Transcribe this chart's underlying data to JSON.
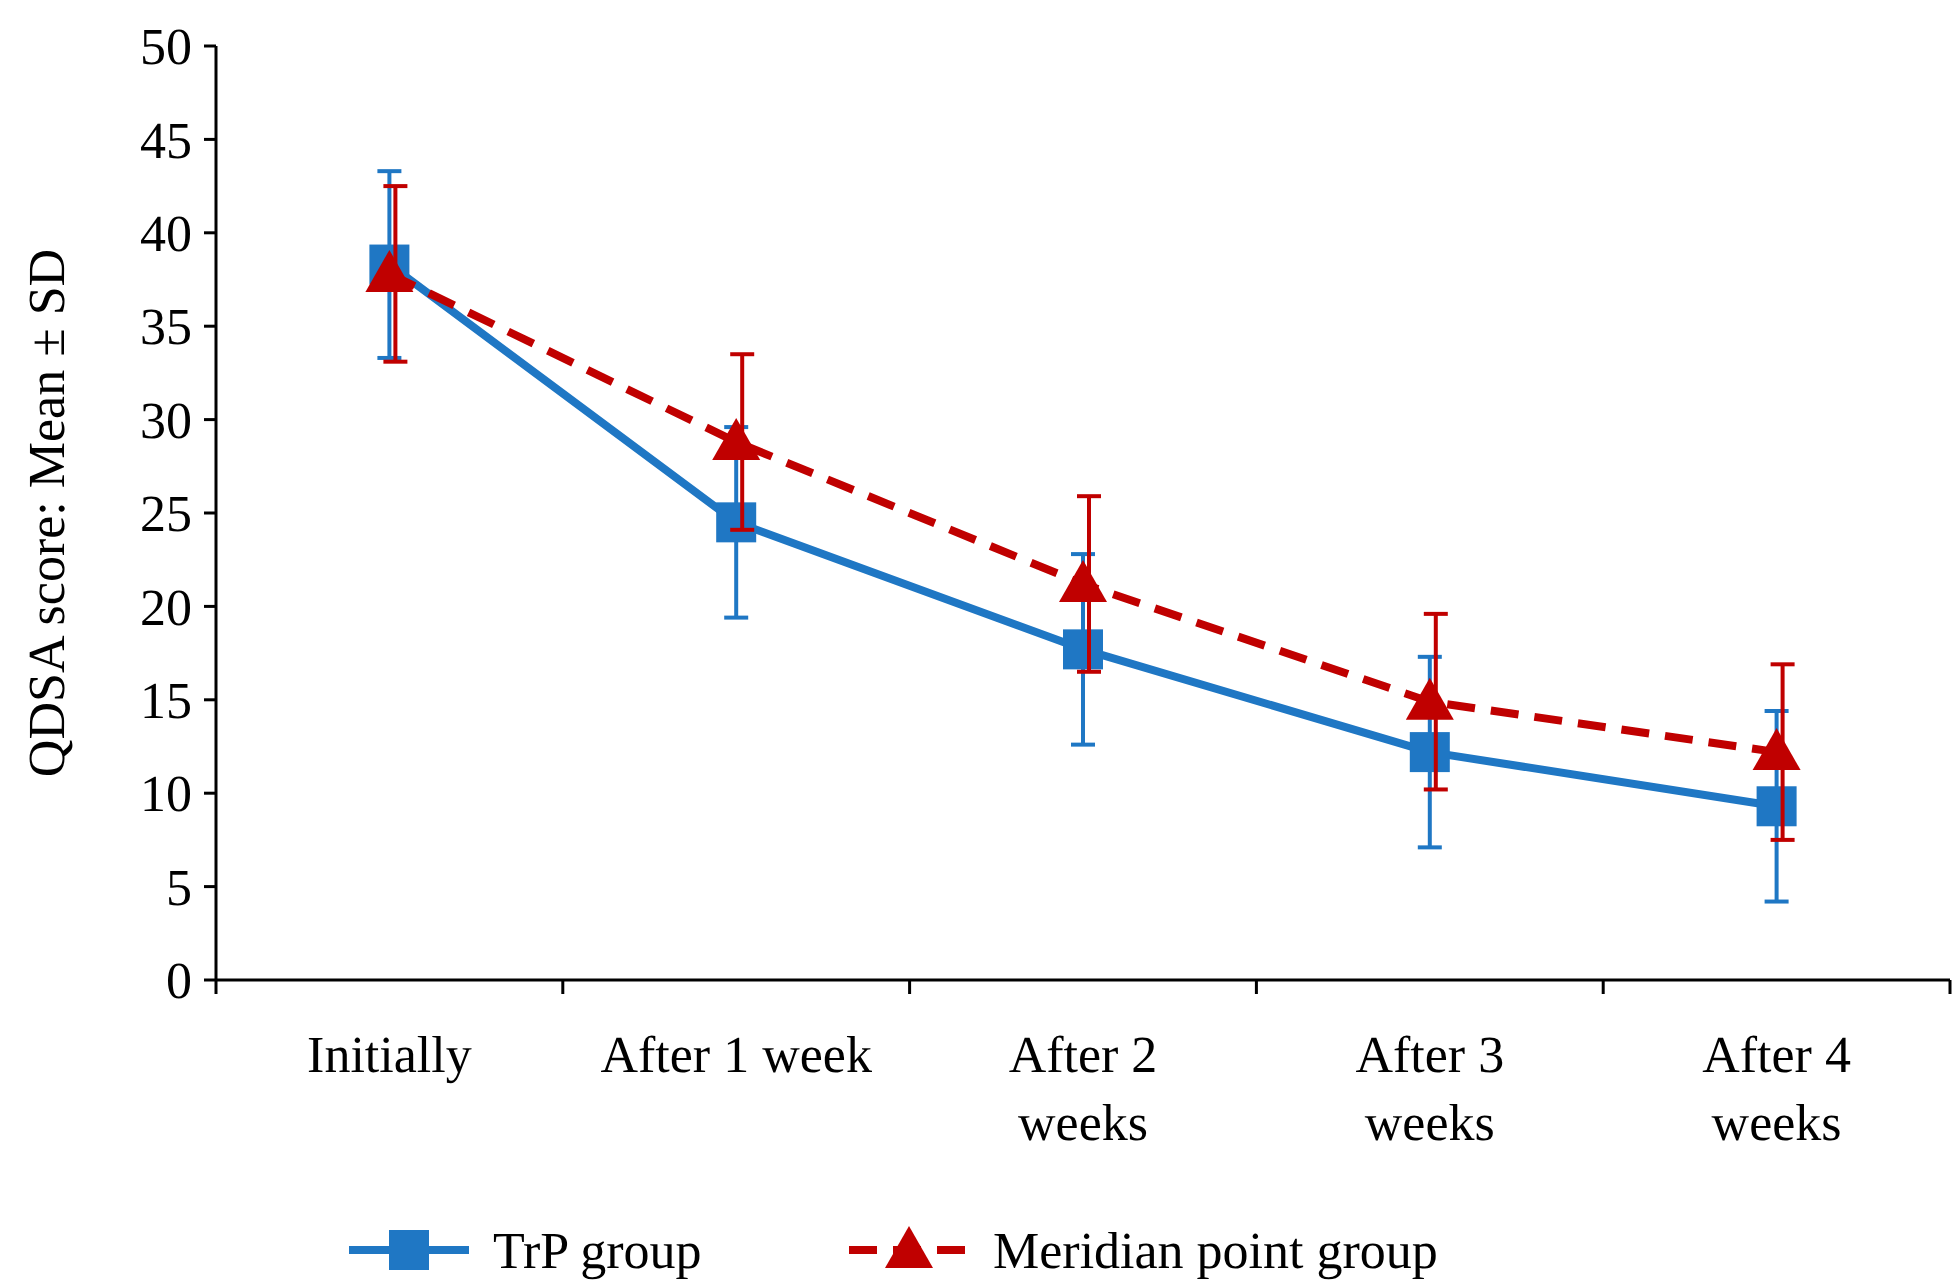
{
  "chart_data": {
    "type": "line",
    "ylabel": "QDSA score: Mean ± SD",
    "categories": [
      "Initially",
      "After 1 week",
      "After 2 weeks",
      "After 3 weeks",
      "After 4 weeks"
    ],
    "ylim": [
      0,
      50
    ],
    "yticks": [
      0,
      5,
      10,
      15,
      20,
      25,
      30,
      35,
      40,
      45,
      50
    ],
    "grid": false,
    "legend": "bottom",
    "series": [
      {
        "name": "TrP group",
        "color": "#1f77c4",
        "marker": "square",
        "line_style": "solid",
        "values": [
          38.3,
          24.5,
          17.7,
          12.2,
          9.3
        ],
        "errors": [
          5,
          5.1,
          5.1,
          5.1,
          5.1
        ]
      },
      {
        "name": "Meridian point group",
        "color": "#c00000",
        "marker": "triangle",
        "line_style": "dashed",
        "values": [
          37.8,
          28.8,
          21.2,
          14.9,
          12.2
        ],
        "errors": [
          4.7,
          4.7,
          4.7,
          4.7,
          4.7
        ]
      }
    ]
  }
}
